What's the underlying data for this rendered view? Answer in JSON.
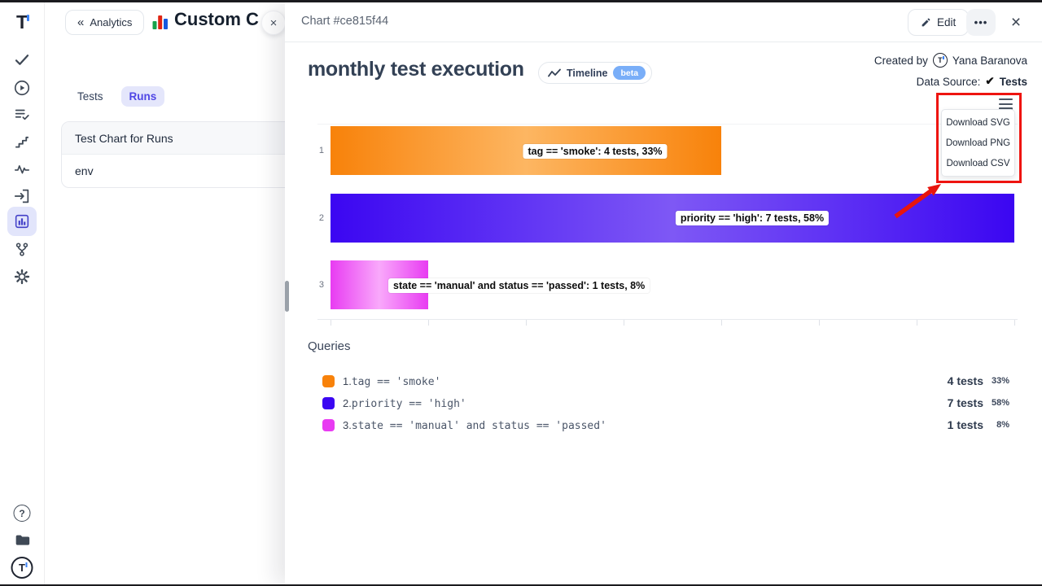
{
  "brand": {
    "logo_text": "T"
  },
  "sidebar": {
    "icons": [
      "check",
      "play-circle",
      "list-check",
      "stairs",
      "activity",
      "import",
      "bar-chart",
      "branch",
      "gear"
    ],
    "active_icon": "bar-chart",
    "footer_icons": [
      "help",
      "docs-folder",
      "avatar"
    ],
    "help_glyph": "?"
  },
  "drawer": {
    "back_label": "Analytics",
    "back_chevron": "«",
    "title": "Custom C",
    "close_glyph": "×",
    "tabs": {
      "tests": "Tests",
      "runs": "Runs"
    },
    "list": [
      "Test Chart for Runs",
      "env"
    ]
  },
  "overlay": {
    "header": {
      "title": "Chart #ce815f44",
      "edit_label": "Edit",
      "more_glyph": "•••",
      "close_glyph": "×"
    },
    "title": "monthly test execution",
    "timeline": {
      "label": "Timeline",
      "beta": "beta",
      "beta_color": "#79aef8"
    },
    "meta": {
      "created_by_label": "Created by",
      "author": "Yana Baranova",
      "data_source_label": "Data Source:",
      "data_source_check": "✔",
      "data_source_value": "Tests"
    },
    "menu": {
      "items": [
        "Download SVG",
        "Download PNG",
        "Download CSV"
      ]
    },
    "annotation_color": "#ee1410"
  },
  "queries": {
    "heading": "Queries",
    "rows": [
      {
        "num": "1.",
        "query": "tag == 'smoke'",
        "tests": "4 tests",
        "percent": "33%",
        "color": "#f8820a"
      },
      {
        "num": "2.",
        "query": "priority == 'high'",
        "tests": "7 tests",
        "percent": "58%",
        "color": "#3b06f2"
      },
      {
        "num": "3.",
        "query": "state == 'manual' and status == 'passed'",
        "tests": "1 tests",
        "percent": "8%",
        "color": "#e83bf2"
      }
    ]
  },
  "chart_data": {
    "type": "bar",
    "orientation": "horizontal",
    "title": "monthly test execution",
    "categories": [
      "1",
      "2",
      "3"
    ],
    "series": [
      {
        "name": "tests",
        "values": [
          4,
          7,
          1
        ]
      }
    ],
    "percentages": [
      33,
      58,
      8
    ],
    "bar_labels": [
      "tag == 'smoke': 4 tests, 33%",
      "priority == 'high': 7 tests, 58%",
      "state == 'manual' and status == 'passed': 1 tests, 8%"
    ],
    "xlim": [
      0,
      7
    ],
    "x_ticks": 8,
    "bar_colors": [
      {
        "edge": "#f8820a",
        "mid": "#fdb662"
      },
      {
        "edge": "#3b06f2",
        "mid": "#7e58f5"
      },
      {
        "edge": "#e83bf2",
        "mid": "#f9a9fb"
      }
    ],
    "legend_position": "bottom"
  }
}
